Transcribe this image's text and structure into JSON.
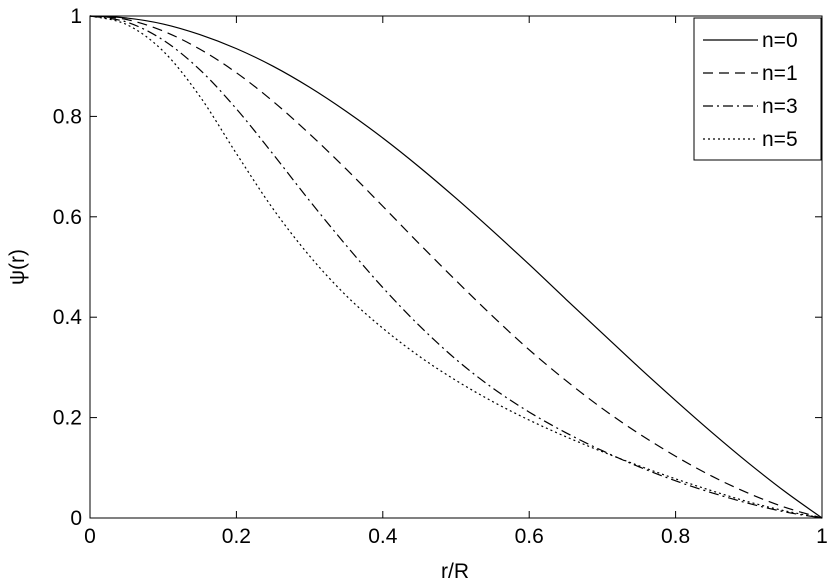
{
  "chart_data": {
    "type": "line",
    "title": "",
    "xlabel": "r/R",
    "ylabel": "ψ(r)",
    "xlim": [
      0,
      1
    ],
    "ylim": [
      0,
      1
    ],
    "xticks": [
      0,
      0.2,
      0.4,
      0.6,
      0.8,
      1
    ],
    "yticks": [
      0,
      0.2,
      0.4,
      0.6,
      0.8,
      1
    ],
    "xtick_labels": [
      "0",
      "0.2",
      "0.4",
      "0.6",
      "0.8",
      "1"
    ],
    "ytick_labels": [
      "0",
      "0.2",
      "0.4",
      "0.6",
      "0.8",
      "1"
    ],
    "grid": false,
    "legend_position": "top-right",
    "x": [
      0,
      0.05,
      0.1,
      0.15,
      0.2,
      0.25,
      0.3,
      0.35,
      0.4,
      0.45,
      0.5,
      0.55,
      0.6,
      0.65,
      0.7,
      0.75,
      0.8,
      0.85,
      0.9,
      0.95,
      1.0
    ],
    "series": [
      {
        "name": "n=0",
        "dash": "solid",
        "values": [
          1.0,
          0.996,
          0.984,
          0.963,
          0.935,
          0.9,
          0.858,
          0.81,
          0.757,
          0.699,
          0.637,
          0.572,
          0.505,
          0.436,
          0.368,
          0.3,
          0.234,
          0.17,
          0.109,
          0.052,
          0.0
        ]
      },
      {
        "name": "n=1",
        "dash": "dashed",
        "values": [
          1.0,
          0.993,
          0.97,
          0.934,
          0.887,
          0.83,
          0.765,
          0.695,
          0.621,
          0.546,
          0.473,
          0.402,
          0.335,
          0.274,
          0.218,
          0.168,
          0.123,
          0.083,
          0.049,
          0.021,
          0.0
        ]
      },
      {
        "name": "n=3",
        "dash": "dashdot",
        "values": [
          1.0,
          0.988,
          0.952,
          0.893,
          0.815,
          0.725,
          0.632,
          0.543,
          0.459,
          0.383,
          0.316,
          0.259,
          0.211,
          0.17,
          0.134,
          0.102,
          0.074,
          0.05,
          0.029,
          0.012,
          0.0
        ]
      },
      {
        "name": "n=5",
        "dash": "dotted",
        "values": [
          1.0,
          0.983,
          0.93,
          0.84,
          0.726,
          0.616,
          0.522,
          0.443,
          0.378,
          0.322,
          0.274,
          0.232,
          0.195,
          0.162,
          0.132,
          0.104,
          0.078,
          0.054,
          0.032,
          0.014,
          0.0
        ]
      }
    ]
  }
}
